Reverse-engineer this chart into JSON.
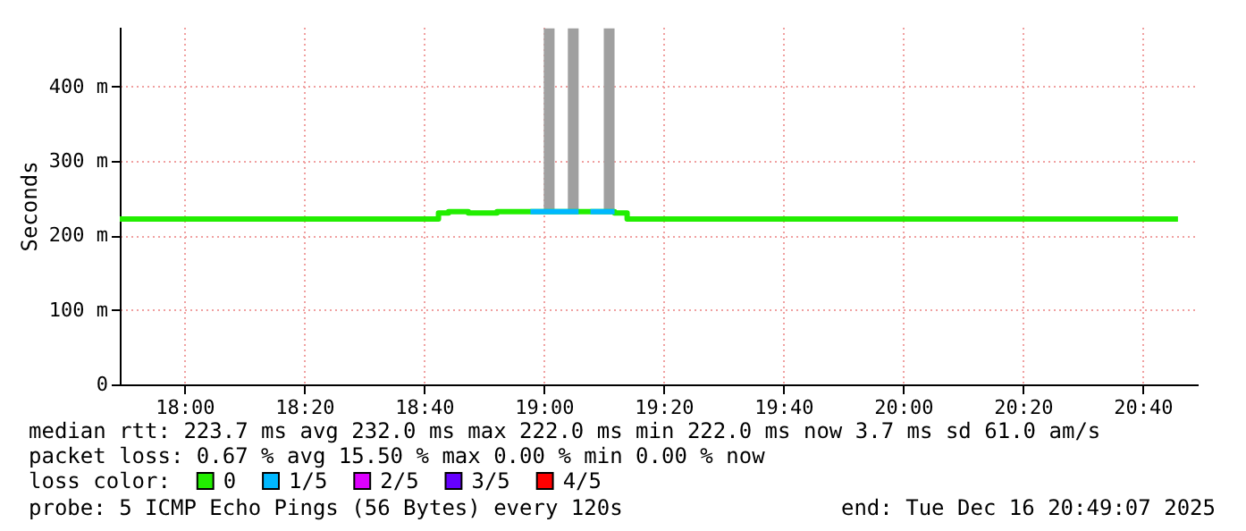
{
  "chart_data": {
    "type": "step",
    "ylabel": "Seconds",
    "legend_title": "loss color:",
    "legend": "bottom",
    "grid": true,
    "xlim": [
      17.82,
      20.82
    ],
    "ylim": [
      0,
      480
    ],
    "xticks": [
      {
        "value": 18,
        "label": "18:00"
      },
      {
        "value": 18.3333,
        "label": "18:20"
      },
      {
        "value": 18.6667,
        "label": "18:40"
      },
      {
        "value": 19,
        "label": "19:00"
      },
      {
        "value": 19.3333,
        "label": "19:20"
      },
      {
        "value": 19.6667,
        "label": "19:40"
      },
      {
        "value": 20,
        "label": "20:00"
      },
      {
        "value": 20.3333,
        "label": "20:20"
      },
      {
        "value": 20.6667,
        "label": "20:40"
      }
    ],
    "yticks": [
      0,
      {
        "value": 100,
        "label": "100 m"
      },
      {
        "value": 200,
        "label": "200 m"
      },
      {
        "value": 300,
        "label": "300 m"
      },
      {
        "value": 400,
        "label": "400 m"
      }
    ],
    "series": [
      {
        "type": "bar",
        "color": "#a0a0a0",
        "x": [
          19.0,
          19.067,
          19.167
        ],
        "base": [
          229,
          229,
          229
        ],
        "values": [
          249,
          249,
          249
        ]
      },
      {
        "name": "0",
        "color": "#22ee00",
        "x": [
          17.82,
          18.707,
          18.735,
          18.79,
          18.87,
          19.197,
          19.232,
          20.765
        ],
        "values": [
          222,
          230,
          232,
          230,
          232,
          230,
          222,
          222
        ]
      },
      {
        "name": "1/5",
        "color": "#00b8ff",
        "x": [
          18.963,
          19.097,
          19.1,
          19.13,
          19.197
        ],
        "values": [
          232,
          232,
          null,
          232,
          232
        ]
      },
      {
        "name": "2/5",
        "color": "#dd00ff"
      },
      {
        "name": "3/5",
        "color": "#6600ff"
      },
      {
        "name": "4/5",
        "color": "#ff0000"
      }
    ],
    "annotations": [
      "median rtt:  223.7 ms avg  232.0 ms max  222.0 ms min  222.0 ms now  3.7 ms sd  61.0   am/s",
      "packet loss: 0.67 % avg  15.50 % max  0.00 % min  0.00 % now",
      "probe:       5 ICMP Echo Pings (56 Bytes) every 120s",
      "end: Tue Dec 16 20:49:07 2025"
    ]
  }
}
